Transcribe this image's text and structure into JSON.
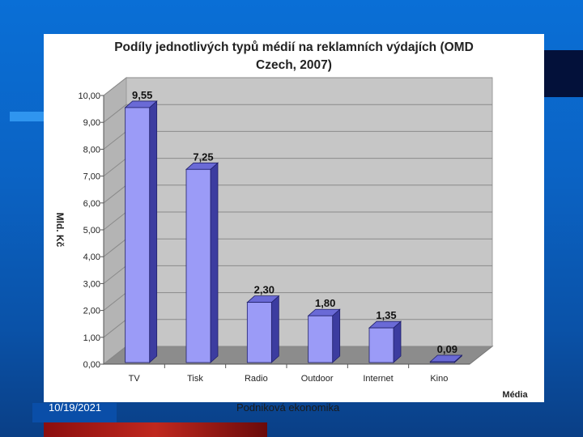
{
  "slide": {
    "date": "10/19/2021",
    "footer_title": "Podniková ekonomika"
  },
  "chart_data": {
    "type": "bar",
    "title_line1": "Podíly jednotlivých typů médií na reklamních výdajích (OMD",
    "title_line2": "Czech, 2007)",
    "xlabel": "Média",
    "ylabel": "Mld. Kč",
    "categories": [
      "TV",
      "Tisk",
      "Radio",
      "Outdoor",
      "Internet",
      "Kino"
    ],
    "values": [
      9.55,
      7.25,
      2.3,
      1.8,
      1.35,
      0.09
    ],
    "value_labels": [
      "9,55",
      "7,25",
      "2,30",
      "1,80",
      "1,35",
      "0,09"
    ],
    "y_ticks": [
      "0,00",
      "1,00",
      "2,00",
      "3,00",
      "4,00",
      "5,00",
      "6,00",
      "7,00",
      "8,00",
      "9,00",
      "10,00"
    ],
    "ylim": [
      0,
      10
    ],
    "grid": true,
    "colors": {
      "bar_front": "#9b9bf7",
      "bar_side": "#3c3ca0",
      "bar_top": "#6a6ad6",
      "wall": "#c6c6c6",
      "floor": "#8c8c8c"
    }
  }
}
